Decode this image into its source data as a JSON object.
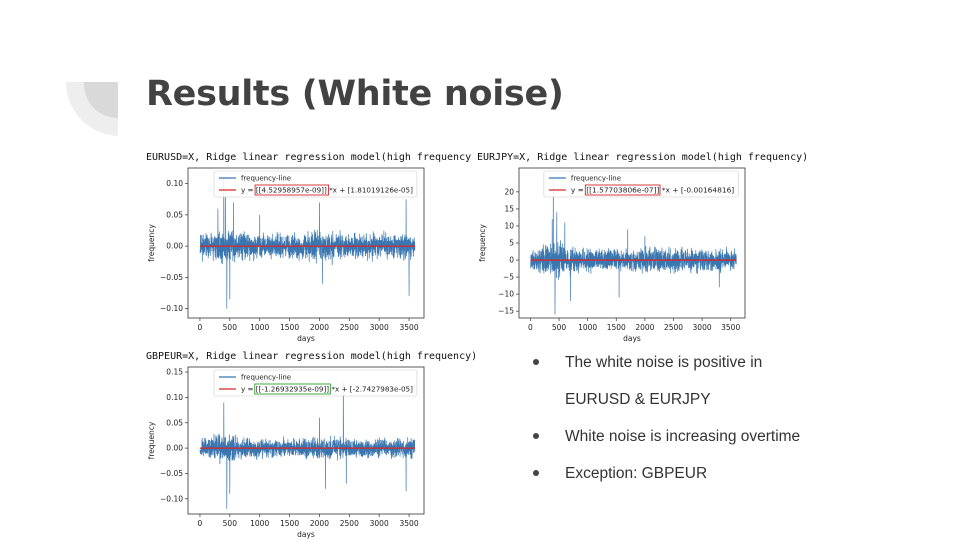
{
  "slide": {
    "title": "Results (White noise)"
  },
  "bullets": [
    {
      "text": "The white noise is positive in",
      "marker": true
    },
    {
      "text": "EURUSD & EURJPY",
      "marker": false
    },
    {
      "text": "White noise is increasing overtime",
      "marker": true
    },
    {
      "text": "Exception: GBPEUR",
      "marker": true
    }
  ],
  "colors": {
    "series": "#3a76b0",
    "fit": "#d62728",
    "highlight_red": "#d62728",
    "highlight_green": "#2ca02c",
    "title": "#424242"
  },
  "chart_data": [
    {
      "id": "eurusd",
      "type": "line",
      "title": "EURUSD=X, Ridge linear regression model(high frequency",
      "xlabel": "days",
      "ylabel": "frequency",
      "xlim": [
        -200,
        3750
      ],
      "ylim": [
        -0.115,
        0.125
      ],
      "xticks": [
        0,
        500,
        1000,
        1500,
        2000,
        2500,
        3000,
        3500
      ],
      "yticks": [
        -0.1,
        -0.05,
        0.0,
        0.05,
        0.1
      ],
      "ytick_labels": [
        "−0.10",
        "−0.05",
        "0.00",
        "0.05",
        "0.10"
      ],
      "legend": [
        "frequency-line",
        "y = [[4.52958957e-09]] *x + [1.81019126e-05]"
      ],
      "legend_boxed_part": "[[4.52958957e-09]]",
      "box_color": "red",
      "noise": {
        "n": 3600,
        "base": 0.011,
        "spikes": [
          [
            300,
            0.06
          ],
          [
            400,
            0.11
          ],
          [
            430,
            0.08
          ],
          [
            450,
            -0.1
          ],
          [
            500,
            -0.085
          ],
          [
            560,
            0.07
          ],
          [
            1000,
            0.05
          ],
          [
            2000,
            0.07
          ],
          [
            2050,
            -0.06
          ],
          [
            3450,
            0.075
          ],
          [
            3500,
            -0.08
          ]
        ],
        "seed": 11
      },
      "fit": {
        "slope": 4.52958957e-09,
        "intercept": 1.81019126e-05
      }
    },
    {
      "id": "eurjpy",
      "type": "line",
      "title": "EURJPY=X, Ridge linear regression model(high frequency)",
      "xlabel": "days",
      "ylabel": "frequency",
      "xlim": [
        -200,
        3750
      ],
      "ylim": [
        -17,
        27
      ],
      "xticks": [
        0,
        500,
        1000,
        1500,
        2000,
        2500,
        3000,
        3500
      ],
      "yticks": [
        -15,
        -10,
        -5,
        0,
        5,
        10,
        15,
        20
      ],
      "ytick_labels": [
        "−15",
        "−10",
        "−5",
        "0",
        "5",
        "10",
        "15",
        "20"
      ],
      "legend": [
        "frequency-line",
        "y = [[1.57703806e-07]] *x + [-0.00164816]"
      ],
      "legend_boxed_part": "[[1.57703806e-07]]",
      "box_color": "red",
      "noise": {
        "n": 3600,
        "base": 1.9,
        "spikes": [
          [
            380,
            12
          ],
          [
            400,
            24
          ],
          [
            430,
            -16
          ],
          [
            460,
            14
          ],
          [
            600,
            11
          ],
          [
            700,
            -12
          ],
          [
            1550,
            -11
          ],
          [
            1700,
            9
          ],
          [
            2000,
            7
          ],
          [
            3300,
            -8
          ]
        ],
        "seed": 23
      },
      "fit": {
        "slope": 1.57703806e-07,
        "intercept": -0.00164816
      }
    },
    {
      "id": "gbpeur",
      "type": "line",
      "title": "GBPEUR=X, Ridge linear regression model(high frequency)",
      "xlabel": "days",
      "ylabel": "frequency",
      "xlim": [
        -200,
        3750
      ],
      "ylim": [
        -0.13,
        0.16
      ],
      "xticks": [
        0,
        500,
        1000,
        1500,
        2000,
        2500,
        3000,
        3500
      ],
      "yticks": [
        -0.1,
        -0.05,
        0.0,
        0.05,
        0.1,
        0.15
      ],
      "ytick_labels": [
        "−0.10",
        "−0.05",
        "0.00",
        "0.05",
        "0.10",
        "0.15"
      ],
      "legend": [
        "frequency-line",
        "y = [[-1.26932935e-09]] *x + [-2.7427983e-05]"
      ],
      "legend_boxed_part": "[[-1.26932935e-09]]",
      "box_color": "green",
      "noise": {
        "n": 3600,
        "base": 0.011,
        "spikes": [
          [
            400,
            0.09
          ],
          [
            450,
            -0.12
          ],
          [
            500,
            -0.09
          ],
          [
            2400,
            0.13
          ],
          [
            2450,
            -0.07
          ],
          [
            2100,
            -0.08
          ],
          [
            3450,
            -0.085
          ],
          [
            2000,
            0.06
          ]
        ],
        "seed": 37
      },
      "fit": {
        "slope": -1.26932935e-09,
        "intercept": -2.7427983e-05
      }
    }
  ]
}
